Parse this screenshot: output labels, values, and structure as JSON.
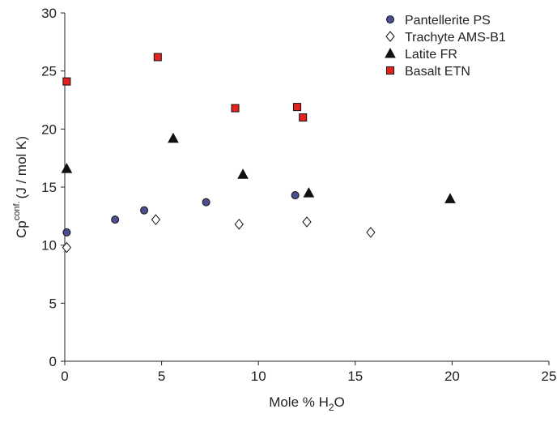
{
  "chart_data": {
    "type": "scatter",
    "xlabel": [
      "Mole % H",
      "2",
      "O"
    ],
    "ylabel": [
      "Cp",
      "conf.",
      "(J / mol K)"
    ],
    "xlim": [
      0,
      25
    ],
    "xticks": [
      0,
      5,
      10,
      15,
      20,
      25
    ],
    "ylim": [
      0,
      30
    ],
    "yticks": [
      0,
      5,
      10,
      15,
      20,
      25,
      30
    ],
    "legend": "upper right",
    "series": [
      {
        "name": "Pantellerite PS",
        "marker": "circle",
        "color": "#4b4f92",
        "x": [
          0.1,
          2.6,
          4.1,
          7.3,
          11.9
        ],
        "values": [
          11.1,
          12.2,
          13.0,
          13.7,
          14.3
        ]
      },
      {
        "name": "Trachyte AMS-B1",
        "marker": "diamond",
        "color": "#ffffff",
        "x": [
          0.1,
          4.7,
          9.0,
          12.5,
          15.8
        ],
        "values": [
          9.8,
          12.2,
          11.8,
          12.0,
          11.1
        ]
      },
      {
        "name": "Latite FR",
        "marker": "triangle",
        "color": "#111111",
        "x": [
          0.1,
          5.6,
          9.2,
          12.6,
          19.9
        ],
        "values": [
          16.6,
          19.2,
          16.1,
          14.5,
          14.0
        ]
      },
      {
        "name": "Basalt ETN",
        "marker": "square",
        "color": "#e4231c",
        "x": [
          0.1,
          4.8,
          8.8,
          12.0,
          12.3
        ],
        "values": [
          24.1,
          26.2,
          21.8,
          21.9,
          21.0
        ]
      }
    ]
  }
}
